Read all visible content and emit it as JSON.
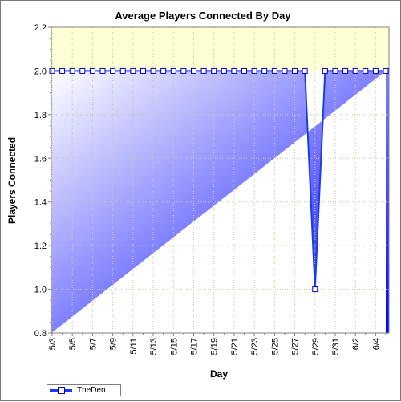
{
  "chart_data": {
    "type": "line",
    "title": "Average Players Connected By Day",
    "xlabel": "Day",
    "ylabel": "Players Connected",
    "ylim": [
      0.8,
      2.2
    ],
    "yticks": [
      "0.8",
      "1.0",
      "1.2",
      "1.4",
      "1.6",
      "1.8",
      "2.0",
      "2.2"
    ],
    "categories": [
      "5/3",
      "5/4",
      "5/5",
      "5/6",
      "5/7",
      "5/8",
      "5/9",
      "5/10",
      "5/11",
      "5/12",
      "5/13",
      "5/14",
      "5/15",
      "5/16",
      "5/17",
      "5/18",
      "5/19",
      "5/20",
      "5/21",
      "5/22",
      "5/23",
      "5/24",
      "5/25",
      "5/26",
      "5/27",
      "5/28",
      "5/29",
      "5/30",
      "5/31",
      "6/1",
      "6/2",
      "6/3",
      "6/4",
      "6/5"
    ],
    "xtick_labels": [
      "5/3",
      "5/5",
      "5/7",
      "5/9",
      "5/11",
      "5/13",
      "5/15",
      "5/17",
      "5/19",
      "5/21",
      "5/23",
      "5/25",
      "5/27",
      "5/29",
      "5/31",
      "6/2",
      "6/4"
    ],
    "series": [
      {
        "name": "TheDen",
        "values": [
          2.0,
          2.0,
          2.0,
          2.0,
          2.0,
          2.0,
          2.0,
          2.0,
          2.0,
          2.0,
          2.0,
          2.0,
          2.0,
          2.0,
          2.0,
          2.0,
          2.0,
          2.0,
          2.0,
          2.0,
          2.0,
          2.0,
          2.0,
          2.0,
          2.0,
          2.0,
          1.0,
          2.0,
          2.0,
          2.0,
          2.0,
          2.0,
          2.0,
          2.0
        ]
      }
    ],
    "grid": true,
    "threshold_band": [
      2.0,
      2.2
    ],
    "legend_position": "bottom-left",
    "colors": {
      "line": "#1a3fe0",
      "marker_edge": "#0000cc",
      "marker_fill": "#ffffff",
      "gradient_start": "#ffffff",
      "gradient_end": "#0000ff",
      "band": "#ffffd6",
      "grid": "#c8c8a8"
    }
  }
}
